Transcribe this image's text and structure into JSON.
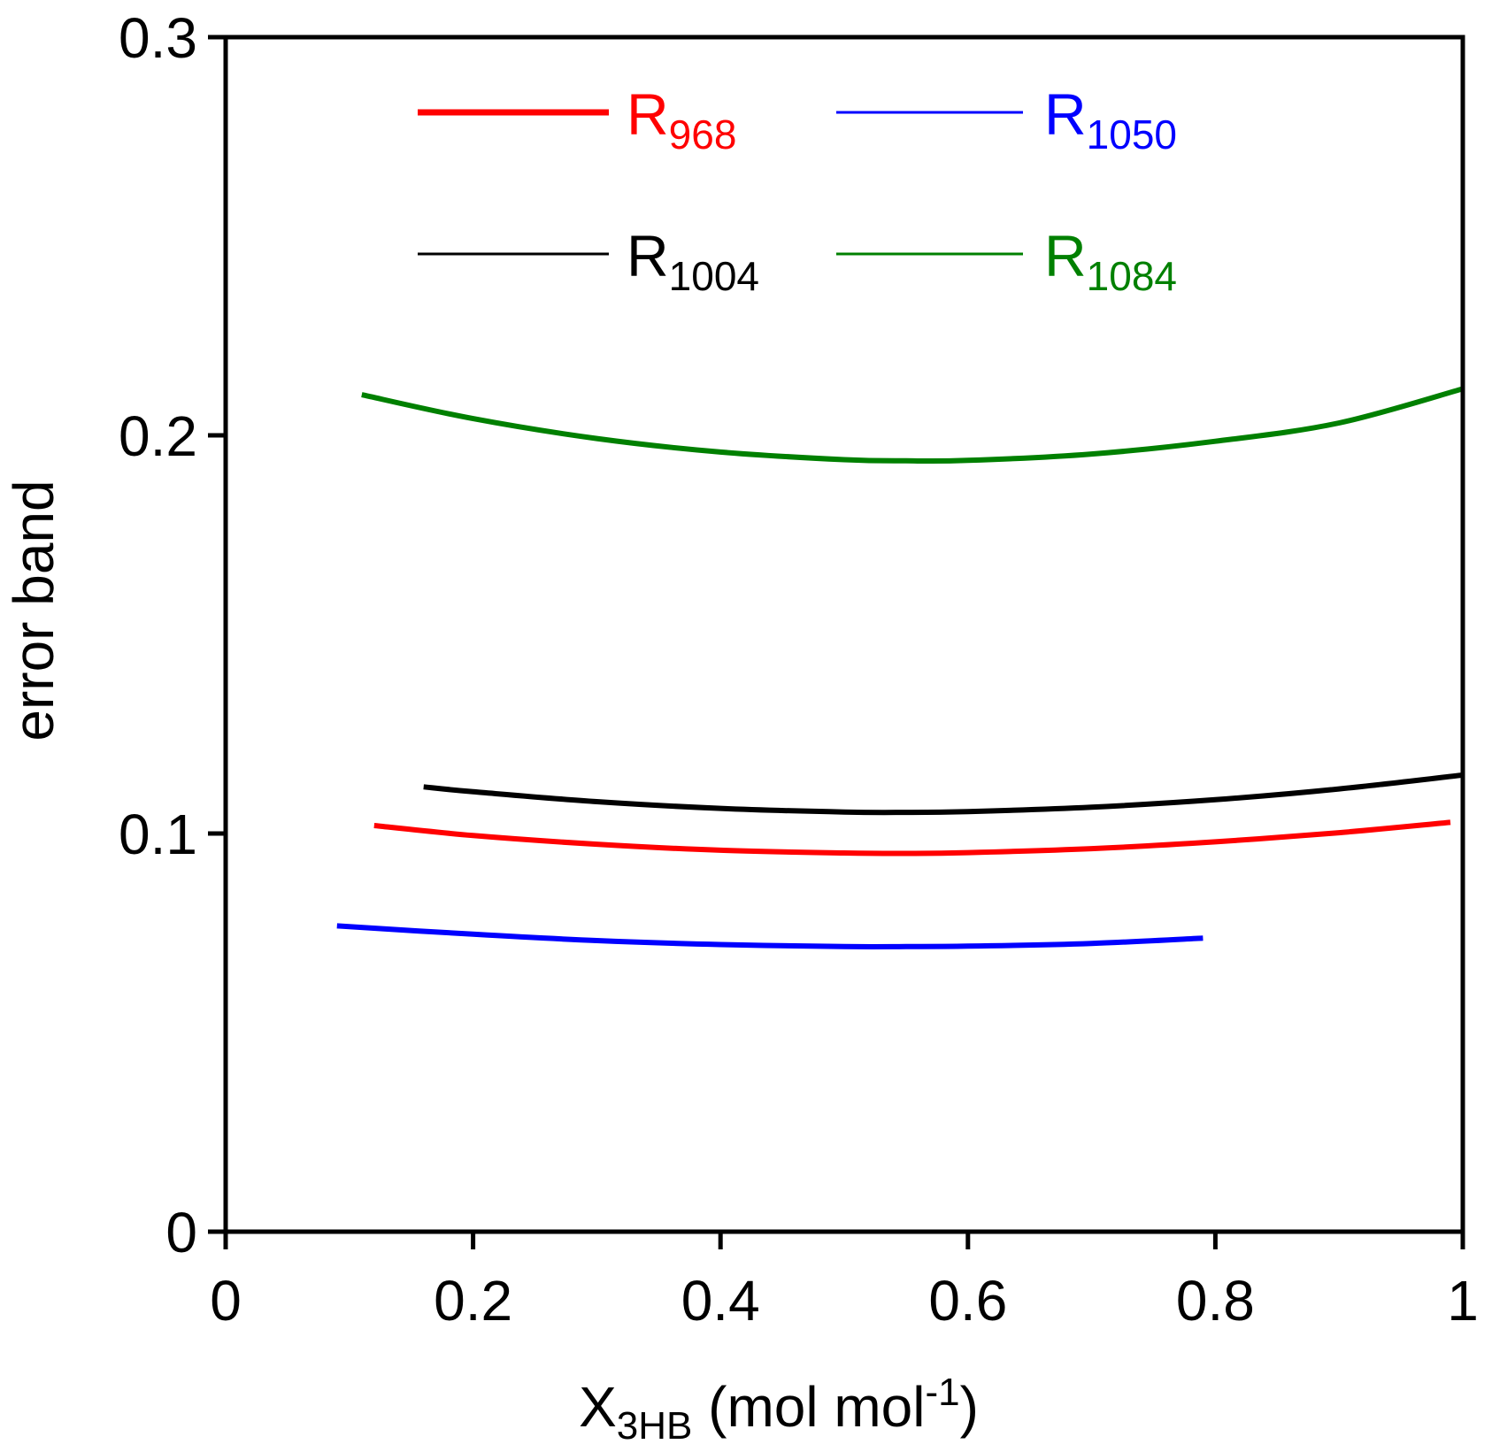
{
  "chart_data": {
    "type": "line",
    "title": "",
    "xlabel": {
      "main": "X",
      "sub": "3HB",
      "after": " (mol mol",
      "sup": "-1",
      "close": ")"
    },
    "ylabel": "error band",
    "xlim": [
      0,
      1
    ],
    "ylim": [
      0,
      0.3
    ],
    "xticks": [
      0,
      0.2,
      0.4,
      0.6,
      0.8,
      1
    ],
    "xtick_labels": [
      "0",
      "0.2",
      "0.4",
      "0.6",
      "0.8",
      "1"
    ],
    "yticks": [
      0,
      0.1,
      0.2,
      0.3
    ],
    "ytick_labels": [
      "0",
      "0.1",
      "0.2",
      "0.3"
    ],
    "grid": false,
    "legend_position": "top",
    "series": [
      {
        "name": "R968",
        "label_main": "R",
        "label_sub": "968",
        "color": "#ff0000",
        "x": [
          0.12,
          0.2,
          0.3,
          0.4,
          0.5,
          0.55,
          0.6,
          0.7,
          0.8,
          0.9,
          0.99
        ],
        "y": [
          0.102,
          0.0995,
          0.0973,
          0.0958,
          0.0951,
          0.095,
          0.0952,
          0.0962,
          0.0979,
          0.1002,
          0.1028
        ]
      },
      {
        "name": "R1004",
        "label_main": "R",
        "label_sub": "1004",
        "color": "#000000",
        "x": [
          0.16,
          0.2,
          0.3,
          0.4,
          0.5,
          0.55,
          0.6,
          0.7,
          0.8,
          0.9,
          1.0
        ],
        "y": [
          0.1117,
          0.1105,
          0.108,
          0.1063,
          0.1054,
          0.1053,
          0.1055,
          0.1066,
          0.1085,
          0.1112,
          0.1147
        ]
      },
      {
        "name": "R1050",
        "label_main": "R",
        "label_sub": "1050",
        "color": "#0000ff",
        "x": [
          0.09,
          0.2,
          0.3,
          0.4,
          0.5,
          0.55,
          0.6,
          0.7,
          0.79
        ],
        "y": [
          0.0768,
          0.0747,
          0.0731,
          0.0721,
          0.0716,
          0.0716,
          0.0717,
          0.0724,
          0.0737
        ]
      },
      {
        "name": "R1084",
        "label_main": "R",
        "label_sub": "1084",
        "color": "#008000",
        "x": [
          0.11,
          0.2,
          0.3,
          0.4,
          0.5,
          0.55,
          0.6,
          0.7,
          0.8,
          0.9,
          1.0
        ],
        "y": [
          0.2102,
          0.2042,
          0.1992,
          0.1958,
          0.1939,
          0.1936,
          0.1937,
          0.1953,
          0.1985,
          0.2031,
          0.2117
        ]
      }
    ]
  }
}
